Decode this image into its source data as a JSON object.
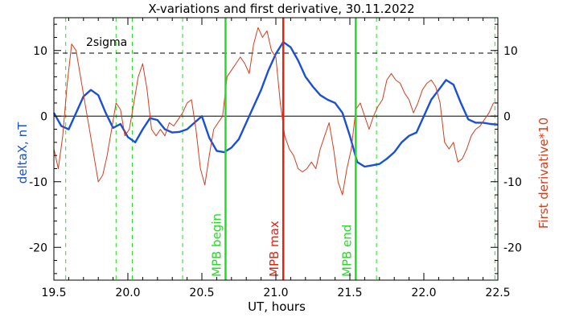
{
  "chart_data": {
    "type": "line",
    "title": "X-variations and first derivative, 30.11.2022",
    "xlabel": "UT, hours",
    "ylabel_left": "deltaX, nT",
    "ylabel_right": "First derivative*10",
    "xlim": [
      19.5,
      22.5
    ],
    "ylim": [
      -25,
      15
    ],
    "x_ticks": [
      "19.5",
      "20.0",
      "20.5",
      "21.0",
      "21.5",
      "22.0",
      "22.5"
    ],
    "y_ticks_left": [
      "-20",
      "-10",
      "0",
      "10"
    ],
    "y_ticks_right": [
      "-20",
      "-10",
      "0",
      "10"
    ],
    "grid": false,
    "threshold": {
      "label": "2sigma",
      "value": 9.6
    },
    "zero_line": 0,
    "colors": {
      "deltaX": "#1a4fd6",
      "derivative": "#d83a1c",
      "mpb_marks": "#22dd22",
      "mpb_max": "#e82010"
    },
    "vertical_markers": [
      {
        "x": 20.66,
        "label": "MPB begin",
        "color": "#22dd22",
        "style": "solid"
      },
      {
        "x": 21.05,
        "label": "MPB max",
        "color": "#e82010",
        "style": "solid"
      },
      {
        "x": 21.54,
        "label": "MPB end",
        "color": "#22dd22",
        "style": "solid"
      }
    ],
    "dashed_markers": [
      19.58,
      19.92,
      20.03,
      20.37,
      21.68,
      22.48
    ],
    "series": [
      {
        "key": "deltaX",
        "axis": "left",
        "x": [
          19.5,
          19.55,
          19.6,
          19.65,
          19.7,
          19.75,
          19.8,
          19.85,
          19.9,
          19.95,
          20.0,
          20.05,
          20.1,
          20.15,
          20.2,
          20.25,
          20.3,
          20.35,
          20.4,
          20.45,
          20.5,
          20.55,
          20.6,
          20.65,
          20.7,
          20.75,
          20.8,
          20.85,
          20.9,
          20.95,
          21.0,
          21.05,
          21.1,
          21.15,
          21.2,
          21.25,
          21.3,
          21.35,
          21.4,
          21.45,
          21.5,
          21.55,
          21.6,
          21.65,
          21.7,
          21.75,
          21.8,
          21.85,
          21.9,
          21.95,
          22.0,
          22.05,
          22.1,
          22.15,
          22.2,
          22.25,
          22.3,
          22.35,
          22.4,
          22.45,
          22.5
        ],
        "y": [
          0.5,
          -1.5,
          -2.0,
          0.5,
          3.0,
          4.0,
          3.2,
          0.5,
          -1.8,
          -1.2,
          -3.2,
          -4.0,
          -2.0,
          -0.3,
          -0.6,
          -2.0,
          -2.5,
          -2.4,
          -2.0,
          -1.0,
          0.0,
          -3.3,
          -5.3,
          -5.5,
          -4.8,
          -3.5,
          -1.0,
          1.5,
          4.0,
          7.0,
          9.5,
          11.3,
          10.5,
          8.5,
          6.0,
          4.5,
          3.2,
          2.5,
          2.0,
          0.5,
          -3.0,
          -7.0,
          -7.7,
          -7.5,
          -7.3,
          -6.5,
          -5.5,
          -4.0,
          -3.0,
          -2.5,
          0.0,
          2.5,
          4.0,
          5.5,
          4.8,
          2.0,
          -0.5,
          -1.0,
          -1.0,
          -1.2,
          -1.3
        ]
      },
      {
        "key": "derivative",
        "axis": "right",
        "x": [
          19.5,
          19.53,
          19.56,
          19.59,
          19.62,
          19.65,
          19.68,
          19.71,
          19.74,
          19.77,
          19.8,
          19.83,
          19.86,
          19.89,
          19.92,
          19.95,
          19.98,
          20.01,
          20.04,
          20.07,
          20.1,
          20.13,
          20.16,
          20.19,
          20.22,
          20.25,
          20.28,
          20.31,
          20.34,
          20.37,
          20.4,
          20.43,
          20.46,
          20.49,
          20.52,
          20.55,
          20.58,
          20.61,
          20.64,
          20.67,
          20.7,
          20.73,
          20.76,
          20.79,
          20.82,
          20.85,
          20.88,
          20.91,
          20.94,
          20.97,
          21.0,
          21.03,
          21.06,
          21.09,
          21.12,
          21.15,
          21.18,
          21.21,
          21.24,
          21.27,
          21.3,
          21.33,
          21.36,
          21.39,
          21.42,
          21.45,
          21.48,
          21.51,
          21.54,
          21.57,
          21.6,
          21.63,
          21.66,
          21.69,
          21.72,
          21.75,
          21.78,
          21.81,
          21.84,
          21.87,
          21.9,
          21.93,
          21.96,
          21.99,
          22.02,
          22.05,
          22.08,
          22.11,
          22.14,
          22.17,
          22.2,
          22.23,
          22.26,
          22.29,
          22.32,
          22.35,
          22.38,
          22.41,
          22.44,
          22.47,
          22.5
        ],
        "y": [
          -5.0,
          -8.0,
          -3.0,
          5.0,
          11.0,
          10.0,
          6.0,
          2.0,
          -2.0,
          -6.0,
          -10.0,
          -9.0,
          -6.0,
          -2.0,
          2.0,
          1.0,
          -3.0,
          -2.0,
          2.0,
          6.0,
          8.0,
          4.0,
          -2.0,
          -3.0,
          -2.0,
          -3.0,
          -1.0,
          -1.5,
          -0.5,
          0.5,
          2.0,
          2.5,
          -2.0,
          -8.0,
          -10.5,
          -6.0,
          -2.0,
          -1.0,
          0.0,
          6.0,
          7.0,
          8.0,
          9.0,
          8.0,
          6.5,
          11.0,
          13.5,
          12.0,
          13.0,
          10.0,
          9.0,
          2.0,
          -3.0,
          -5.0,
          -6.0,
          -8.0,
          -8.5,
          -8.0,
          -7.0,
          -8.0,
          -5.0,
          -3.0,
          -1.0,
          -5.0,
          -10.0,
          -12.0,
          -8.0,
          -5.0,
          1.0,
          2.0,
          0.0,
          -2.0,
          0.0,
          1.5,
          2.5,
          5.5,
          6.5,
          5.5,
          5.0,
          3.5,
          2.5,
          0.5,
          2.0,
          4.0,
          5.0,
          5.5,
          4.5,
          2.0,
          -4.0,
          -5.0,
          -4.0,
          -7.0,
          -6.5,
          -5.0,
          -3.0,
          -2.0,
          -1.5,
          -0.5,
          0.5,
          2.0,
          2.0
        ]
      }
    ]
  }
}
